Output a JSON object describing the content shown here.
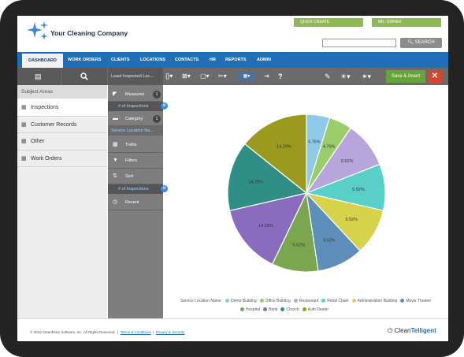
{
  "header": {
    "company_name": "Your Cleaning Company",
    "quick_create_label": "QUICK CREATE",
    "user_label": "MR. OWNER",
    "search_value": "",
    "search_button": "SEARCH"
  },
  "nav": {
    "items": [
      "DASHBOARD",
      "WORK ORDERS",
      "CLIENTS",
      "LOCATIONS",
      "CONTACTS",
      "HR",
      "REPORTS",
      "ADMIN"
    ]
  },
  "toolbar": {
    "report_title": "Least Inspected Loc...",
    "save_label": "Save & Insert",
    "close_label": "✕"
  },
  "subject_areas": {
    "title": "Subject Areas",
    "items": [
      "Inspections",
      "Customer Records",
      "Other",
      "Work Orders"
    ]
  },
  "builder": {
    "measures_label": "Measures",
    "measures_count": "1",
    "measures_field": "# of Inspections",
    "category_label": "Category",
    "category_count": "1",
    "category_field": "Service Location Na...",
    "trellis_label": "Trellis",
    "filters_label": "Filters",
    "sort_label": "Sort",
    "sort_field": "# of Inspections",
    "recent_label": "Recent"
  },
  "chart_data": {
    "type": "pie",
    "legend_title": "Service Location Name",
    "categories": [
      "Demo Building",
      "Office Building",
      "Restaurant",
      "Retail Chain",
      "Administration Building",
      "Movie Theater",
      "Hospital",
      "Bank",
      "Church",
      "Auto Dealer"
    ],
    "values": [
      4.76,
      4.76,
      9.52,
      9.52,
      9.52,
      9.52,
      9.52,
      14.29,
      14.29,
      14.29
    ],
    "labels": [
      "4.76%",
      "4.76%",
      "9.52%",
      "9.52%",
      "9.52%",
      "9.52%",
      "9.52%",
      "14.29%",
      "14.29%",
      "14.29%"
    ],
    "colors": [
      "#8ec9e8",
      "#9bcc6a",
      "#b7a6dc",
      "#58d0c8",
      "#d6d24a",
      "#5e8fba",
      "#7aa650",
      "#8a6cbf",
      "#2f8f86",
      "#9c9a1e"
    ],
    "legend_placement": "bottom"
  },
  "footer": {
    "copyright": "© 2019 CleanBrain Software, Inc. All Rights Reserved.",
    "terms": "Terms & Conditions",
    "privacy": "Privacy & Security",
    "brand_a": "Clean",
    "brand_b": "Telligent"
  }
}
